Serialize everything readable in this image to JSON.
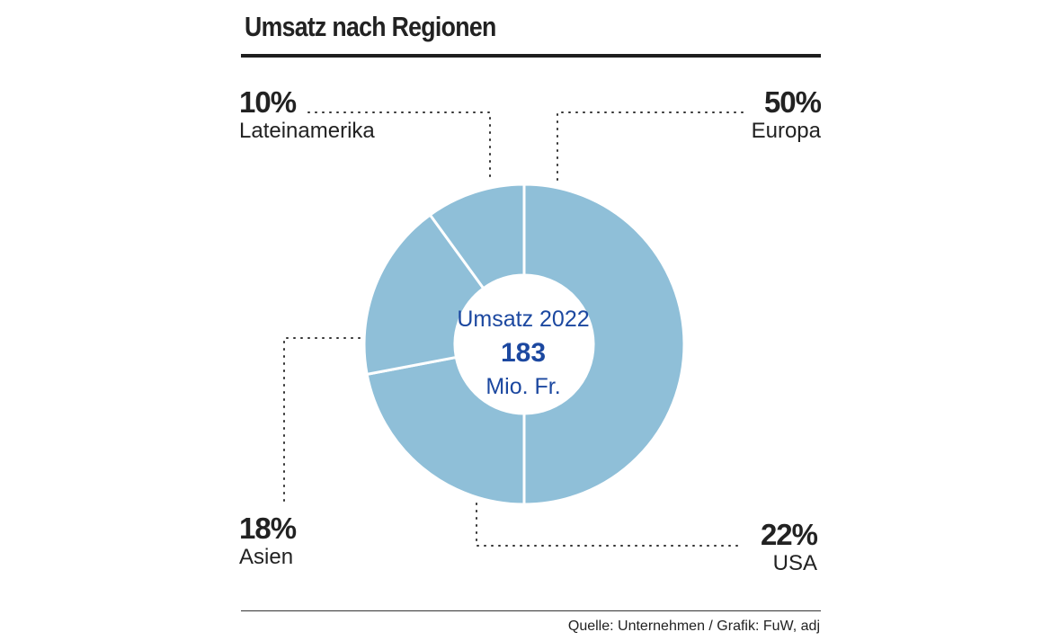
{
  "chart_data": {
    "type": "pie",
    "title": "Umsatz nach Regionen",
    "categories": [
      "Europa",
      "USA",
      "Asien",
      "Lateinamerika"
    ],
    "values": [
      50,
      22,
      18,
      10
    ],
    "value_labels": [
      "50%",
      "22%",
      "18%",
      "10%"
    ],
    "center": {
      "line1": "Umsatz 2022",
      "line2": "183",
      "line3": "Mio. Fr."
    },
    "source": "Quelle: Unternehmen / Grafik: FuW, adj"
  },
  "colors": {
    "slice": "#8fbfd8",
    "center_text": "#1c48a0",
    "text": "#222222"
  }
}
